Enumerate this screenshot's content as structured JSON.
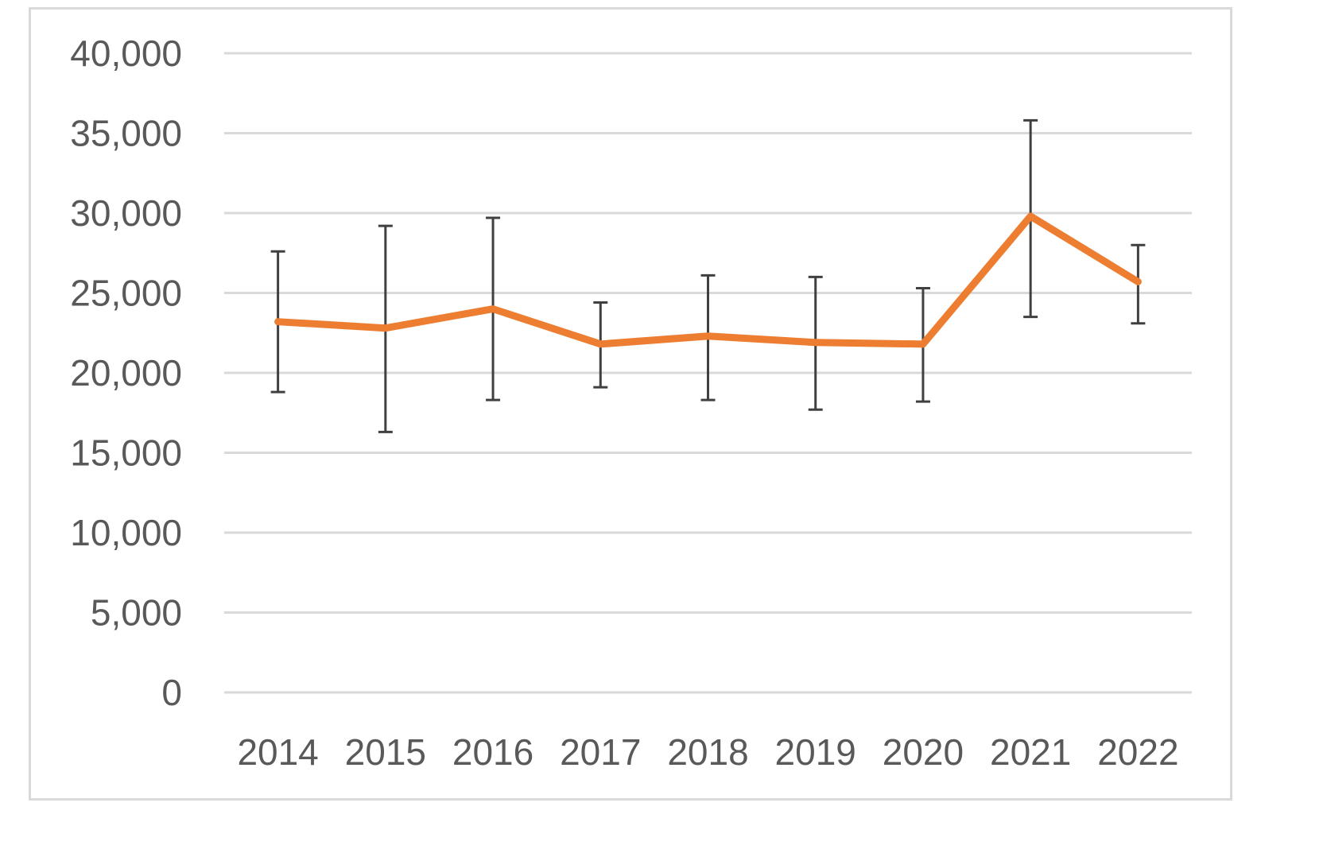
{
  "chart_data": {
    "type": "line",
    "title": "",
    "xlabel": "",
    "ylabel": "",
    "categories": [
      "2014",
      "2015",
      "2016",
      "2017",
      "2018",
      "2019",
      "2020",
      "2021",
      "2022"
    ],
    "series": [
      {
        "values": [
          23200,
          22800,
          24000,
          21800,
          22300,
          21900,
          21800,
          29800,
          25700
        ],
        "error_low": [
          18800,
          16300,
          18300,
          19100,
          18300,
          17700,
          18200,
          23500,
          23100
        ],
        "error_high": [
          27600,
          29200,
          29700,
          24400,
          26100,
          26000,
          25300,
          35800,
          28000
        ],
        "color": "#ed7d31"
      }
    ],
    "ylim": [
      0,
      40000
    ],
    "yticks": [
      0,
      5000,
      10000,
      15000,
      20000,
      25000,
      30000,
      35000,
      40000
    ],
    "ytick_labels": [
      "0",
      "5,000",
      "10,000",
      "15,000",
      "20,000",
      "25,000",
      "30,000",
      "35,000",
      "40,000"
    ],
    "grid": true,
    "legend": "none",
    "error_bar_color": "#404040",
    "grid_color": "#d9d9d9",
    "label_color": "#595959"
  }
}
